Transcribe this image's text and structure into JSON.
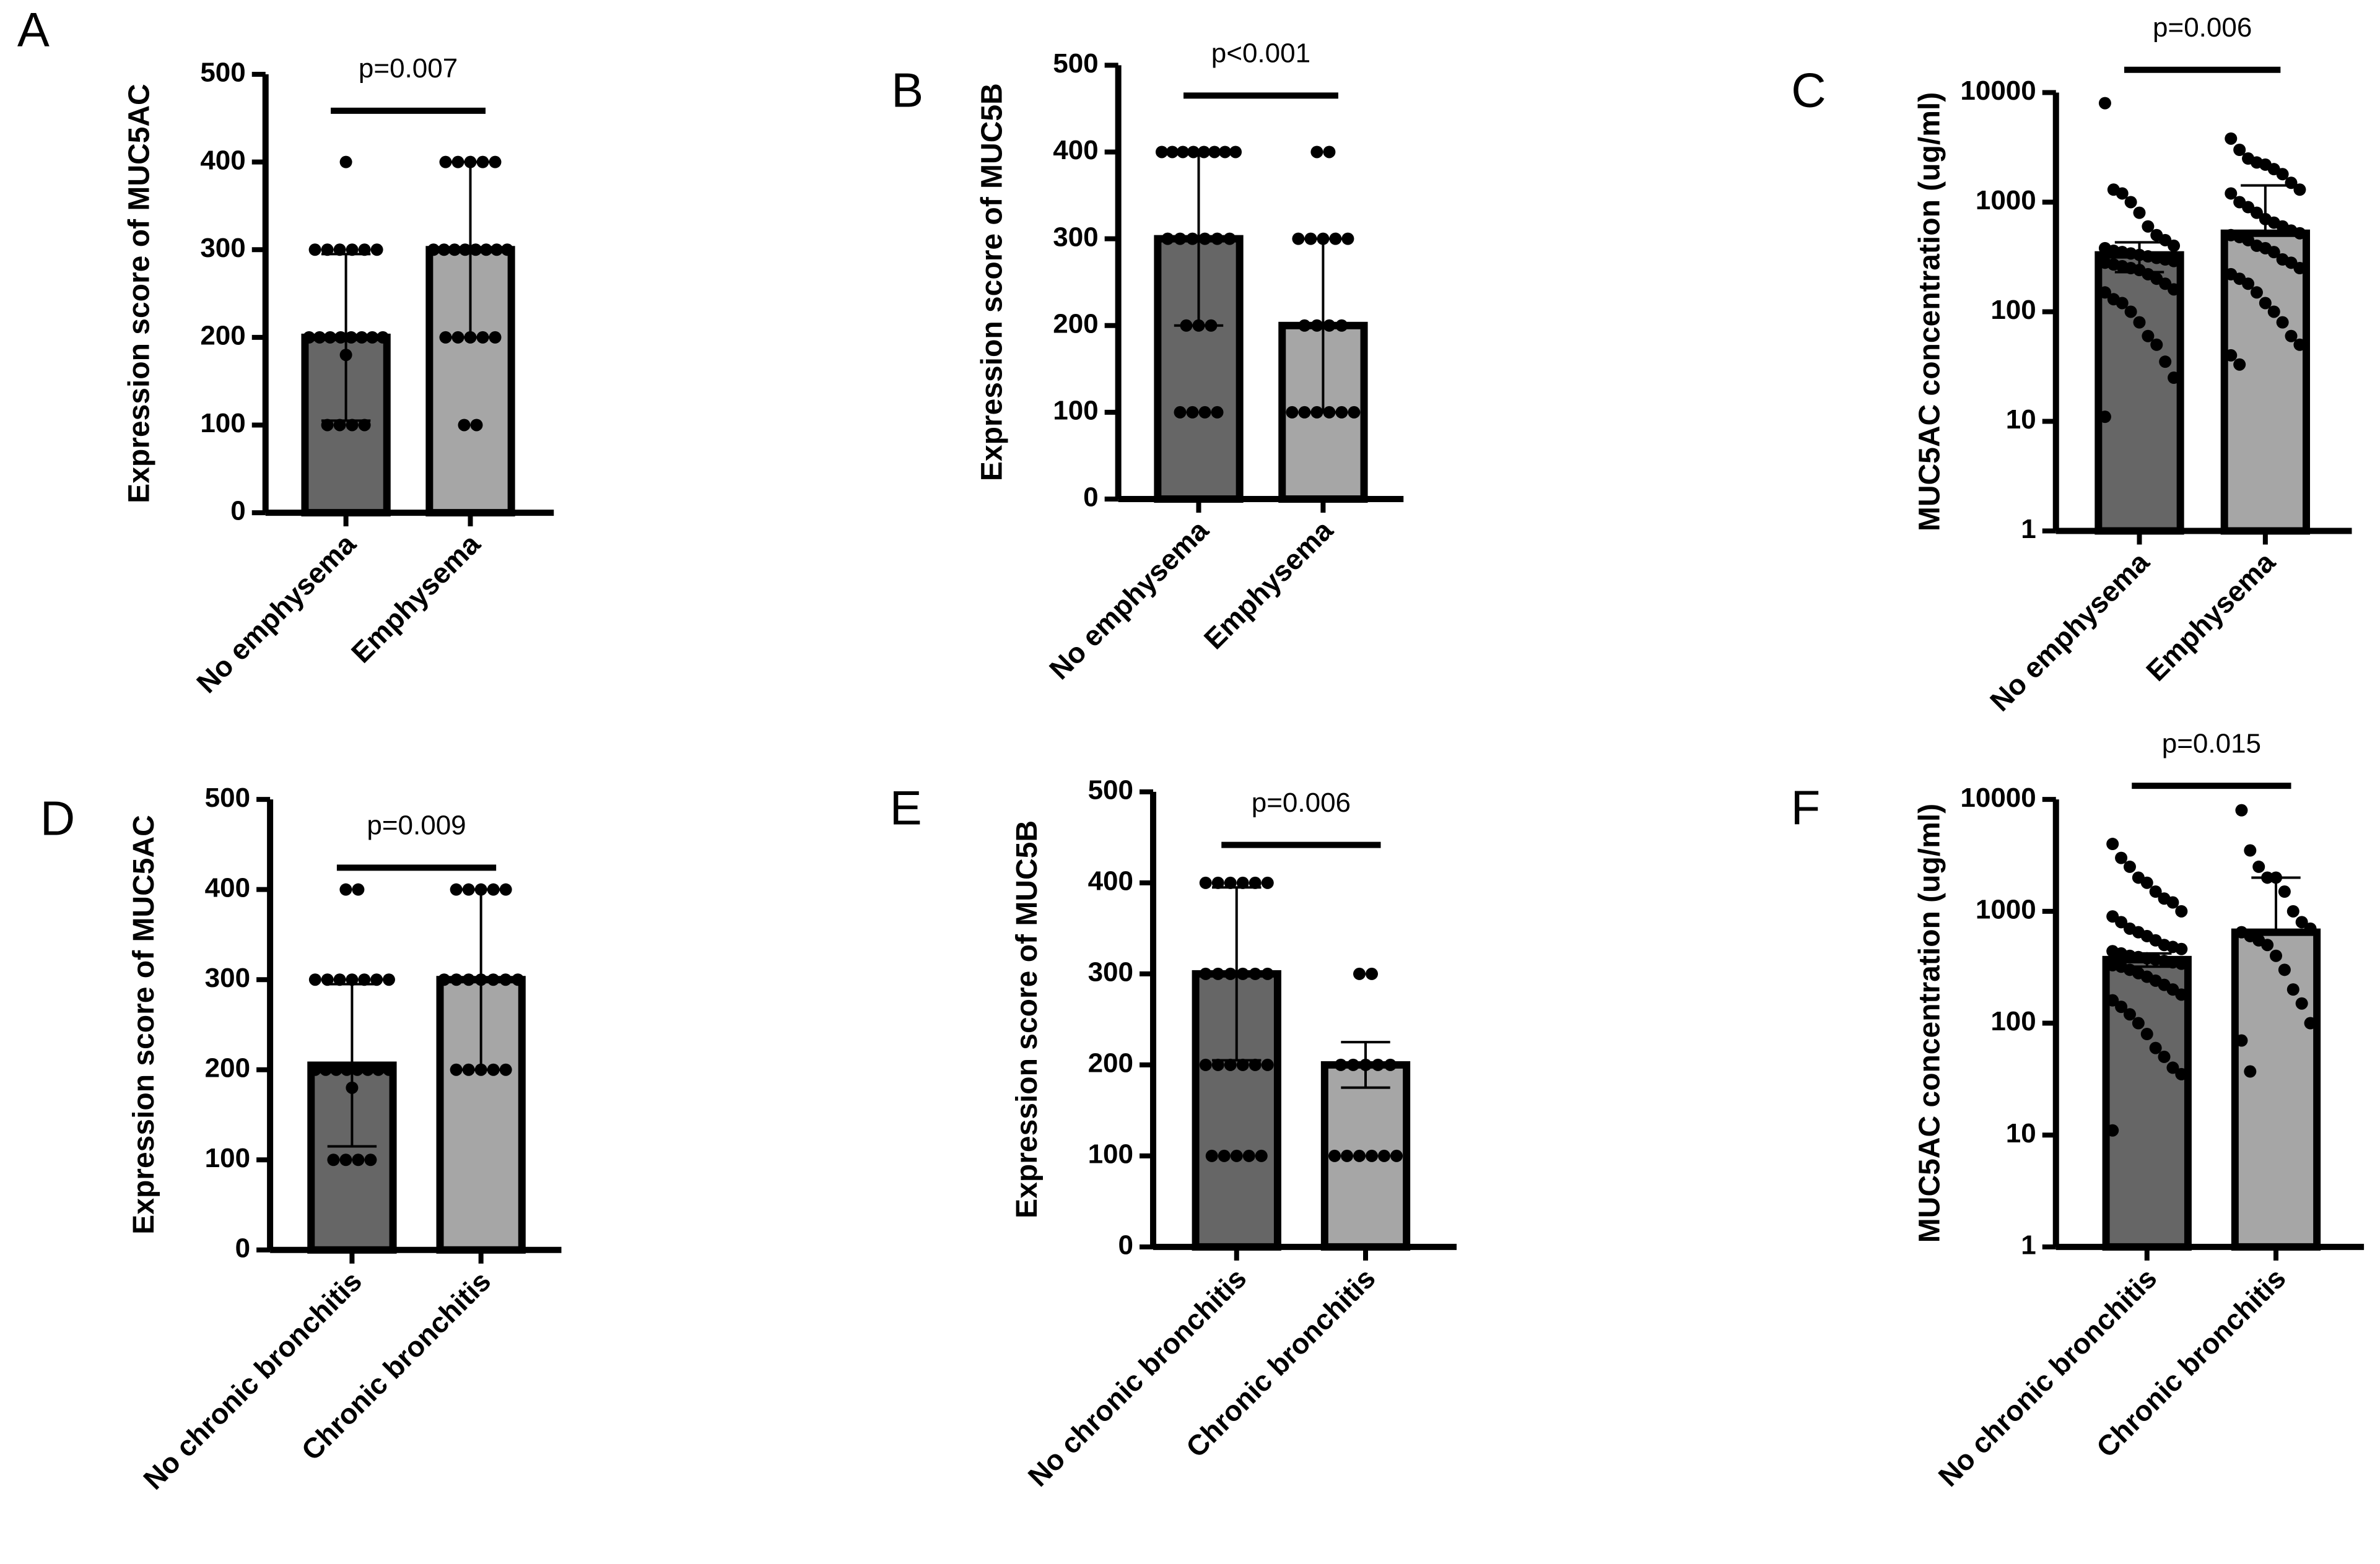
{
  "chart_data": [
    {
      "type": "bar",
      "panel": "A",
      "ylabel": "Expression score of MUC5AC",
      "annotation": "p=0.007",
      "categories": [
        "No emphysema",
        "Emphysema"
      ],
      "values": [
        200,
        300
      ],
      "errors": [
        95,
        100
      ],
      "colors": [
        "#666666",
        "#a6a6a6"
      ],
      "points": [
        [
          100,
          100,
          100,
          100,
          180,
          200,
          200,
          200,
          200,
          200,
          200,
          200,
          200,
          300,
          300,
          300,
          300,
          300,
          300,
          400
        ],
        [
          100,
          100,
          200,
          200,
          200,
          200,
          200,
          300,
          300,
          300,
          300,
          300,
          300,
          300,
          300,
          400,
          400,
          400,
          400,
          400
        ]
      ],
      "ylim": [
        0,
        500
      ],
      "yticks": [
        0,
        100,
        200,
        300,
        400,
        500
      ],
      "log": false
    },
    {
      "type": "bar",
      "panel": "B",
      "ylabel": "Expression score of MUC5B",
      "annotation": "p<0.001",
      "categories": [
        "No emphysema",
        "Emphysema"
      ],
      "values": [
        300,
        200
      ],
      "errors": [
        100,
        100
      ],
      "colors": [
        "#666666",
        "#a6a6a6"
      ],
      "points": [
        [
          100,
          100,
          100,
          100,
          200,
          200,
          200,
          300,
          300,
          300,
          300,
          300,
          300,
          400,
          400,
          400,
          400,
          400,
          400,
          400,
          400
        ],
        [
          100,
          100,
          100,
          100,
          100,
          100,
          200,
          200,
          200,
          200,
          300,
          300,
          300,
          300,
          300,
          400,
          400
        ]
      ],
      "ylim": [
        0,
        500
      ],
      "yticks": [
        0,
        100,
        200,
        300,
        400,
        500
      ],
      "log": false
    },
    {
      "type": "bar",
      "panel": "C",
      "ylabel": "MUC5AC concentration (ug/ml)",
      "annotation": "p=0.006",
      "categories": [
        "No emphysema",
        "Emphysema"
      ],
      "values": [
        330,
        520
      ],
      "errors": [
        100,
        900
      ],
      "colors": [
        "#666666",
        "#a6a6a6"
      ],
      "points": [
        [
          8000,
          1300,
          1200,
          1000,
          800,
          600,
          500,
          450,
          400,
          380,
          360,
          350,
          340,
          330,
          320,
          310,
          300,
          290,
          280,
          270,
          260,
          250,
          240,
          220,
          200,
          180,
          160,
          150,
          130,
          120,
          100,
          80,
          60,
          50,
          35,
          25,
          11
        ],
        [
          3800,
          3000,
          2500,
          2300,
          2200,
          2000,
          1800,
          1500,
          1300,
          1200,
          1000,
          900,
          800,
          700,
          650,
          600,
          550,
          520,
          500,
          480,
          450,
          400,
          380,
          350,
          300,
          280,
          250,
          220,
          200,
          180,
          150,
          120,
          100,
          80,
          60,
          50,
          40,
          33
        ]
      ],
      "ylim": [
        1,
        10000
      ],
      "yticks": [
        1,
        10,
        100,
        1000,
        10000
      ],
      "log": true
    },
    {
      "type": "bar",
      "panel": "D",
      "ylabel": "Expression score of MUC5AC",
      "annotation": "p=0.009",
      "categories": [
        "No chronic bronchitis",
        "Chronic bronchitis"
      ],
      "values": [
        205,
        300
      ],
      "errors": [
        90,
        100
      ],
      "colors": [
        "#666666",
        "#a6a6a6"
      ],
      "points": [
        [
          100,
          100,
          100,
          100,
          180,
          200,
          200,
          200,
          200,
          200,
          200,
          200,
          200,
          300,
          300,
          300,
          300,
          300,
          300,
          300,
          400,
          400
        ],
        [
          200,
          200,
          200,
          200,
          200,
          300,
          300,
          300,
          300,
          300,
          300,
          300,
          400,
          400,
          400,
          400,
          400
        ]
      ],
      "ylim": [
        0,
        500
      ],
      "yticks": [
        0,
        100,
        200,
        300,
        400,
        500
      ],
      "log": false
    },
    {
      "type": "bar",
      "panel": "E",
      "ylabel": "Expression score of MUC5B",
      "annotation": "p=0.006",
      "categories": [
        "No chronic bronchitis",
        "Chronic bronchitis"
      ],
      "values": [
        300,
        200
      ],
      "errors": [
        95,
        25
      ],
      "colors": [
        "#666666",
        "#a6a6a6"
      ],
      "points": [
        [
          100,
          100,
          100,
          100,
          100,
          200,
          200,
          200,
          200,
          200,
          200,
          300,
          300,
          300,
          300,
          300,
          300,
          400,
          400,
          400,
          400,
          400,
          400
        ],
        [
          100,
          100,
          100,
          100,
          100,
          100,
          200,
          200,
          200,
          200,
          200,
          300,
          300
        ]
      ],
      "ylim": [
        0,
        500
      ],
      "yticks": [
        0,
        100,
        200,
        300,
        400,
        500
      ],
      "log": false
    },
    {
      "type": "bar",
      "panel": "F",
      "ylabel": "MUC5AC concentration (ug/ml)",
      "annotation": "p=0.015",
      "categories": [
        "No chronic bronchitis",
        "Chronic bronchitis"
      ],
      "values": [
        370,
        650
      ],
      "errors": [
        50,
        1350
      ],
      "colors": [
        "#666666",
        "#a6a6a6"
      ],
      "points": [
        [
          4000,
          3000,
          2500,
          2000,
          1800,
          1500,
          1300,
          1200,
          1000,
          900,
          800,
          700,
          650,
          600,
          550,
          500,
          480,
          460,
          440,
          420,
          400,
          390,
          380,
          370,
          360,
          350,
          340,
          330,
          320,
          300,
          280,
          260,
          240,
          220,
          200,
          180,
          160,
          140,
          120,
          100,
          80,
          60,
          50,
          40,
          35,
          11
        ],
        [
          8000,
          3500,
          2500,
          2000,
          2000,
          1500,
          1000,
          800,
          700,
          650,
          600,
          550,
          500,
          400,
          300,
          200,
          150,
          100,
          70,
          37
        ]
      ],
      "ylim": [
        1,
        10000
      ],
      "yticks": [
        1,
        10,
        100,
        1000,
        10000
      ],
      "log": true
    }
  ]
}
